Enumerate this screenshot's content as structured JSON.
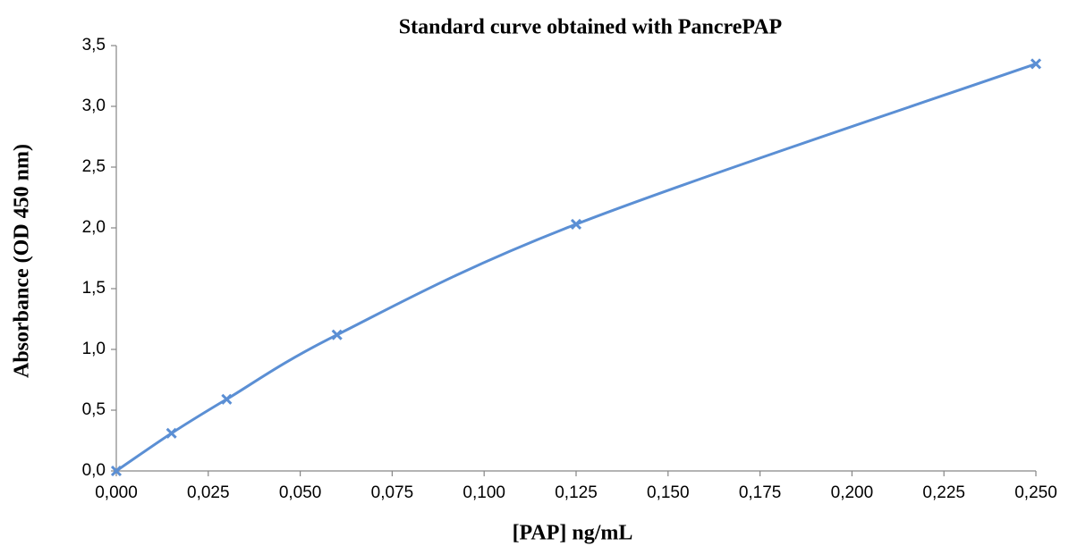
{
  "chart_data": {
    "type": "line",
    "title": "Standard curve obtained with PancrePAP",
    "x_label": "[PAP] ng/mL",
    "y_label": "Absorbance (OD 450 nm)",
    "x": [
      0,
      0.015,
      0.03,
      0.06,
      0.125,
      0.25
    ],
    "series": [
      {
        "name": "PancrePAP",
        "color": "#5b8fd4",
        "values": [
          0,
          0.31,
          0.59,
          1.12,
          2.03,
          3.35
        ]
      }
    ],
    "smooth": true,
    "marker": "x",
    "xlim": [
      0,
      0.25
    ],
    "ylim": [
      0,
      3.5
    ],
    "xticks": [
      {
        "value": 0,
        "label": "0,000"
      },
      {
        "value": 0.025,
        "label": "0,025"
      },
      {
        "value": 0.05,
        "label": "0,050"
      },
      {
        "value": 0.075,
        "label": "0,075"
      },
      {
        "value": 0.1,
        "label": "0,100"
      },
      {
        "value": 0.125,
        "label": "0,125"
      },
      {
        "value": 0.15,
        "label": "0,150"
      },
      {
        "value": 0.175,
        "label": "0,175"
      },
      {
        "value": 0.2,
        "label": "0,200"
      },
      {
        "value": 0.225,
        "label": "0,225"
      },
      {
        "value": 0.25,
        "label": "0,250"
      }
    ],
    "yticks": [
      {
        "value": 0,
        "label": "0,0"
      },
      {
        "value": 0.5,
        "label": "0,5"
      },
      {
        "value": 1,
        "label": "1,0"
      },
      {
        "value": 1.5,
        "label": "1,5"
      },
      {
        "value": 2,
        "label": "2,0"
      },
      {
        "value": 2.5,
        "label": "2,5"
      },
      {
        "value": 3,
        "label": "3,0"
      },
      {
        "value": 3.5,
        "label": "3,5"
      }
    ],
    "grid": false
  }
}
